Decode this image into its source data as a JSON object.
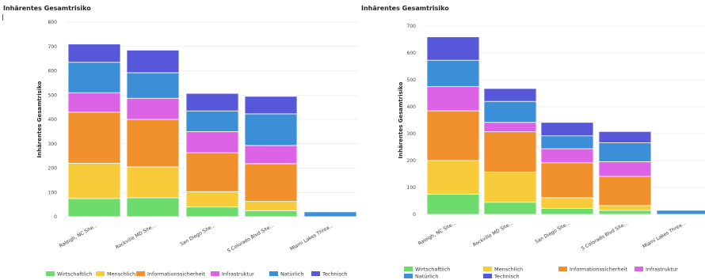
{
  "colors": {
    "Wirtschaftlich": "#6ddc6c",
    "Menschlich": "#f8cb3a",
    "Informationssicherheit": "#f0912e",
    "Infrastruktur": "#dd63e6",
    "Natürlich": "#3a8fd6",
    "Technisch": "#5757da",
    "gridline": "#e6e6e6",
    "divider": "#ffffff"
  },
  "chart_data": [
    {
      "type": "bar",
      "stacked": true,
      "title": "Inhärentes Gesamtrisiko",
      "ylabel": "Inhärentes Gesamtrisiko",
      "xlabel": "",
      "ylim": [
        0,
        800
      ],
      "yticks": [
        0,
        100,
        200,
        300,
        400,
        500,
        600,
        700,
        800
      ],
      "grid": true,
      "legend": "bottom",
      "categories": [
        "Raleigh, NC Site...",
        "Rockville MD Site...",
        "San Diego Site...",
        "S Colorado Blvd Site...",
        "Miami Lakes Threa..."
      ],
      "series": [
        {
          "name": "Wirtschaftlich",
          "values": [
            75,
            78,
            40,
            25,
            0
          ]
        },
        {
          "name": "Menschlich",
          "values": [
            145,
            127,
            63,
            38,
            0
          ]
        },
        {
          "name": "Informationssicherheit",
          "values": [
            210,
            195,
            160,
            155,
            0
          ]
        },
        {
          "name": "Infrastruktur",
          "values": [
            80,
            87,
            87,
            75,
            0
          ]
        },
        {
          "name": "Natürlich",
          "values": [
            125,
            105,
            85,
            130,
            20
          ]
        },
        {
          "name": "Technisch",
          "values": [
            75,
            93,
            72,
            72,
            0
          ]
        }
      ]
    },
    {
      "type": "bar",
      "stacked": true,
      "title": "Inhärentes Gesamtrisiko",
      "ylabel": "Inhärentes Gesamtrisiko",
      "xlabel": "",
      "ylim": [
        0,
        700
      ],
      "yticks": [
        0,
        100,
        200,
        300,
        400,
        500,
        600,
        700
      ],
      "grid": true,
      "legend": "bottom",
      "categories": [
        "Raleigh, NC Site...",
        "Rockville MD Site...",
        "San Diego Site...",
        "S Colorado Blvd Site...",
        "Miami Lakes Threa..."
      ],
      "series": [
        {
          "name": "Wirtschaftlich",
          "values": [
            75,
            45,
            22,
            15,
            0
          ]
        },
        {
          "name": "Menschlich",
          "values": [
            125,
            112,
            40,
            18,
            0
          ]
        },
        {
          "name": "Informationssicherheit",
          "values": [
            185,
            150,
            130,
            108,
            0
          ]
        },
        {
          "name": "Infrastruktur",
          "values": [
            90,
            35,
            52,
            55,
            0
          ]
        },
        {
          "name": "Natürlich",
          "values": [
            98,
            78,
            48,
            70,
            15
          ]
        },
        {
          "name": "Technisch",
          "values": [
            87,
            48,
            50,
            42,
            0
          ]
        }
      ]
    }
  ]
}
